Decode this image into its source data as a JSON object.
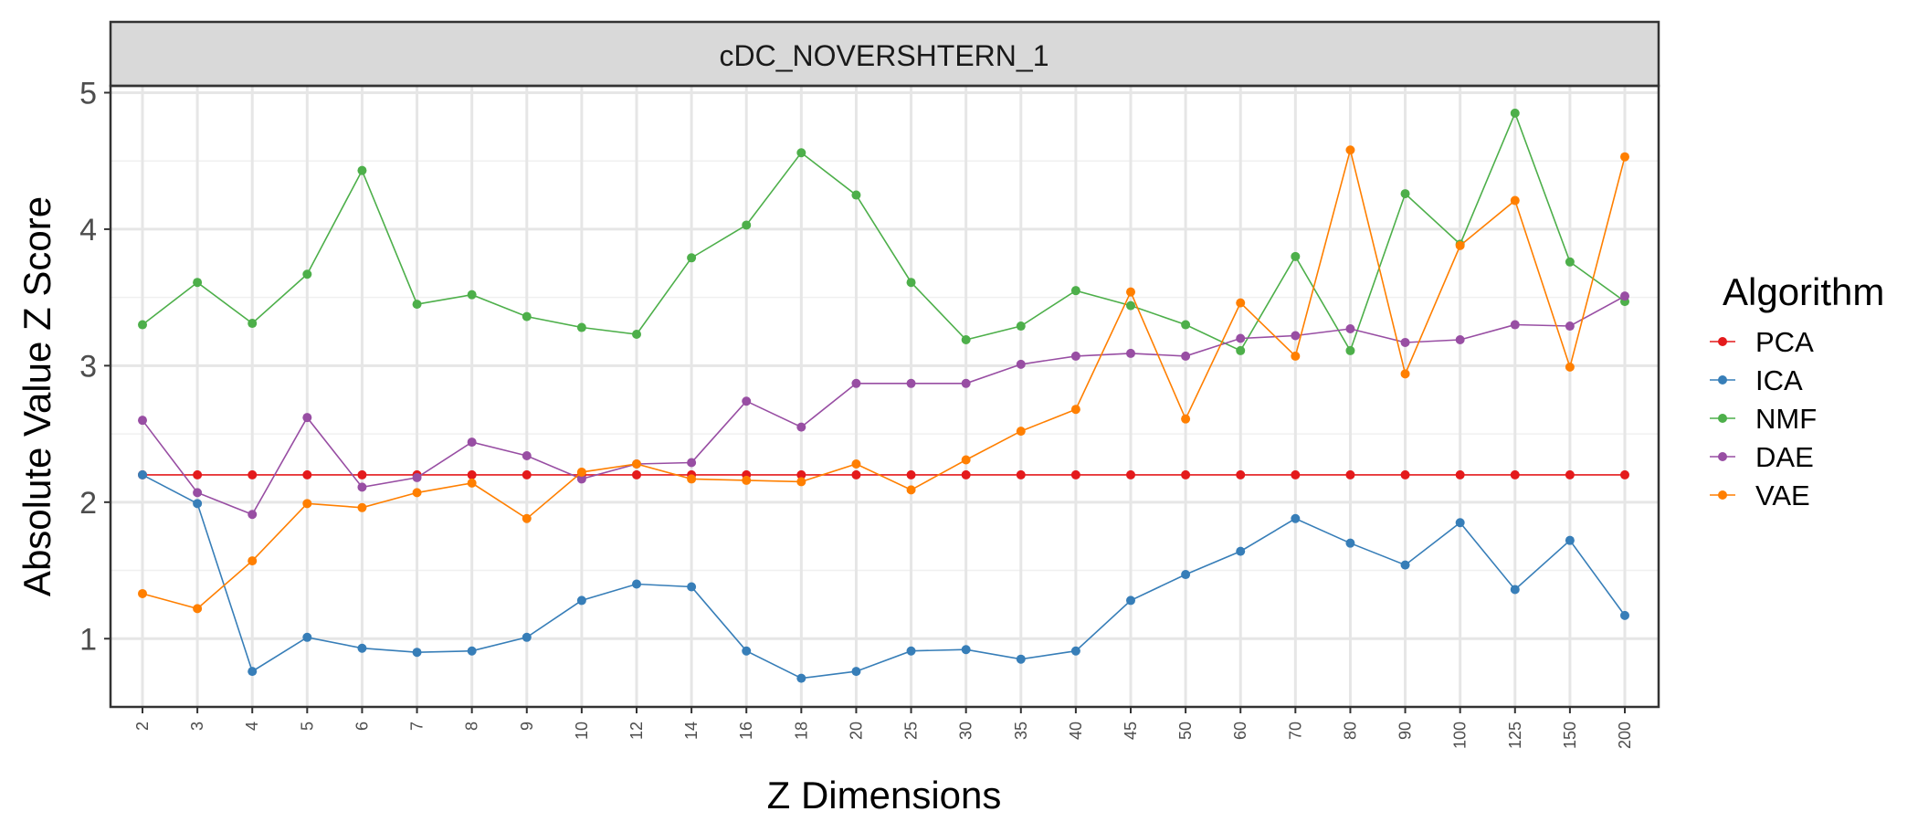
{
  "chart_data": {
    "type": "line",
    "facet_title": "cDC_NOVERSHTERN_1",
    "xlabel": "Z Dimensions",
    "ylabel": "Absolute Value Z Score",
    "categories": [
      "2",
      "3",
      "4",
      "5",
      "6",
      "7",
      "8",
      "9",
      "10",
      "12",
      "14",
      "16",
      "18",
      "20",
      "25",
      "30",
      "35",
      "40",
      "45",
      "50",
      "60",
      "70",
      "80",
      "90",
      "100",
      "125",
      "150",
      "200"
    ],
    "ylim": [
      0.5,
      5.05
    ],
    "yticks": [
      1,
      2,
      3,
      4,
      5
    ],
    "grid": true,
    "legend": {
      "title": "Algorithm",
      "position": "right"
    },
    "series": [
      {
        "name": "PCA",
        "color": "#e41a1c",
        "values": [
          2.2,
          2.2,
          2.2,
          2.2,
          2.2,
          2.2,
          2.2,
          2.2,
          2.2,
          2.2,
          2.2,
          2.2,
          2.2,
          2.2,
          2.2,
          2.2,
          2.2,
          2.2,
          2.2,
          2.2,
          2.2,
          2.2,
          2.2,
          2.2,
          2.2,
          2.2,
          2.2,
          2.2
        ]
      },
      {
        "name": "ICA",
        "color": "#377eb8",
        "values": [
          2.2,
          1.99,
          0.76,
          1.01,
          0.93,
          0.9,
          0.91,
          1.01,
          1.28,
          1.4,
          1.38,
          0.91,
          0.71,
          0.76,
          0.91,
          0.92,
          0.85,
          0.91,
          1.28,
          1.47,
          1.64,
          1.88,
          1.7,
          1.54,
          1.85,
          1.36,
          1.72,
          1.17
        ]
      },
      {
        "name": "NMF",
        "color": "#4daf4a",
        "values": [
          3.3,
          3.61,
          3.31,
          3.67,
          4.43,
          3.45,
          3.52,
          3.36,
          3.28,
          3.23,
          3.79,
          4.03,
          4.56,
          4.25,
          3.61,
          3.19,
          3.29,
          3.55,
          3.44,
          3.3,
          3.11,
          3.8,
          3.11,
          4.26,
          3.89,
          4.85,
          3.76,
          3.47
        ]
      },
      {
        "name": "DAE",
        "color": "#984ea3",
        "values": [
          2.6,
          2.07,
          1.91,
          2.62,
          2.11,
          2.18,
          2.44,
          2.34,
          2.17,
          2.28,
          2.29,
          2.74,
          2.55,
          2.87,
          2.87,
          2.87,
          3.01,
          3.07,
          3.09,
          3.07,
          3.2,
          3.22,
          3.27,
          3.17,
          3.19,
          3.3,
          3.29,
          3.51
        ]
      },
      {
        "name": "VAE",
        "color": "#ff7f00",
        "values": [
          1.33,
          1.22,
          1.57,
          1.99,
          1.96,
          2.07,
          2.14,
          1.88,
          2.22,
          2.28,
          2.17,
          2.16,
          2.15,
          2.28,
          2.09,
          2.31,
          2.52,
          2.68,
          3.54,
          2.61,
          3.46,
          3.07,
          4.58,
          2.94,
          3.88,
          4.21,
          2.99,
          4.53
        ]
      }
    ]
  }
}
